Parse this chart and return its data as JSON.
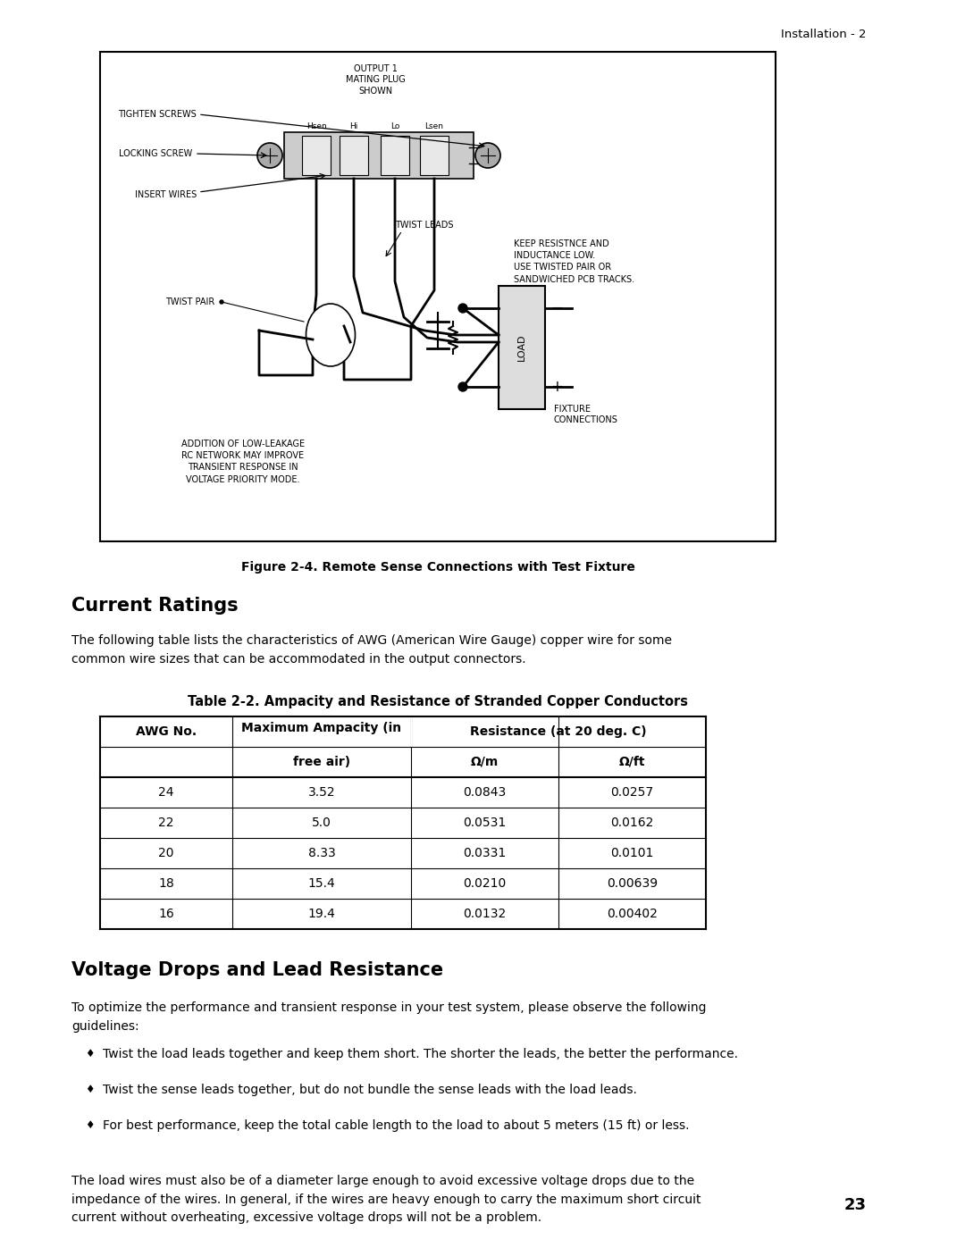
{
  "page_header": "Installation - 2",
  "figure_caption": "Figure 2-4. Remote Sense Connections with Test Fixture",
  "section1_title": "Current Ratings",
  "section1_body": "The following table lists the characteristics of AWG (American Wire Gauge) copper wire for some\ncommon wire sizes that can be accommodated in the output connectors.",
  "table_title": "Table 2-2. Ampacity and Resistance of Stranded Copper Conductors",
  "table_data": [
    [
      "24",
      "3.52",
      "0.0843",
      "0.0257"
    ],
    [
      "22",
      "5.0",
      "0.0531",
      "0.0162"
    ],
    [
      "20",
      "8.33",
      "0.0331",
      "0.0101"
    ],
    [
      "18",
      "15.4",
      "0.0210",
      "0.00639"
    ],
    [
      "16",
      "19.4",
      "0.0132",
      "0.00402"
    ]
  ],
  "section2_title": "Voltage Drops and Lead Resistance",
  "section2_body": "To optimize the performance and transient response in your test system, please observe the following\nguidelines:",
  "bullets": [
    "Twist the load leads together and keep them short. The shorter the leads, the better the performance.",
    "Twist the sense leads together, but do not bundle the sense leads with the load leads.",
    "For best performance, keep the total cable length to the load to about 5 meters (15 ft) or less."
  ],
  "section2_body2": "The load wires must also be of a diameter large enough to avoid excessive voltage drops due to the\nimpedance of the wires. In general, if the wires are heavy enough to carry the maximum short circuit\ncurrent without overheating, excessive voltage drops will not be a problem.",
  "page_number": "23",
  "bg_color": "#ffffff"
}
